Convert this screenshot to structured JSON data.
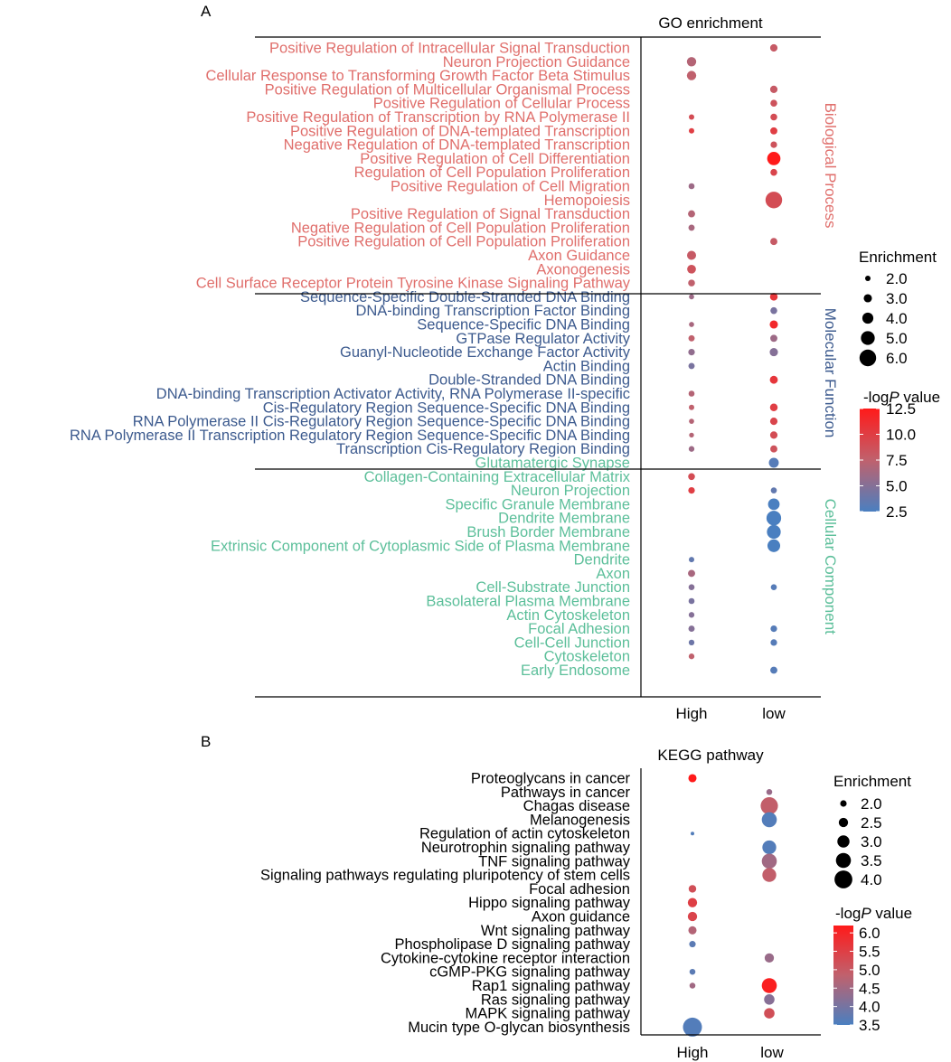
{
  "panel_a": {
    "label": "A",
    "title": "GO enrichment",
    "x_categories": [
      "High",
      "low"
    ],
    "groups": [
      {
        "name": "Biological Process",
        "color": "#e06f6c",
        "terms": [
          "Positive Regulation of Intracellular Signal Transduction",
          "Neuron Projection Guidance",
          "Cellular Response to Transforming Growth Factor Beta Stimulus",
          "Positive Regulation of Multicellular Organismal Process",
          "Positive Regulation of Cellular Process",
          "Positive Regulation of Transcription by RNA Polymerase II",
          "Positive Regulation of DNA-templated Transcription",
          "Negative Regulation of DNA-templated Transcription",
          "Positive Regulation of Cell Differentiation",
          "Regulation of Cell Population Proliferation",
          "Positive Regulation of Cell Migration",
          "Hemopoiesis",
          "Positive Regulation of Signal Transduction",
          "Negative Regulation of Cell Population Proliferation",
          "Positive Regulation of Cell Population Proliferation",
          "Axon Guidance",
          "Axonogenesis",
          "Cell Surface Receptor Protein Tyrosine Kinase Signaling Pathway"
        ]
      },
      {
        "name": "Molecular Function",
        "color": "#3c5a8e",
        "terms": [
          "Sequence-Specific Double-Stranded DNA Binding",
          "DNA-binding Transcription Factor Binding",
          "Sequence-Specific DNA Binding",
          "GTPase Regulator Activity",
          "Guanyl-Nucleotide Exchange Factor Activity",
          "Actin Binding",
          "Double-Stranded DNA Binding",
          "DNA-binding Transcription Activator Activity, RNA Polymerase II-specific",
          "Cis-Regulatory Region Sequence-Specific DNA Binding",
          "RNA Polymerase II Cis-Regulatory Region Sequence-Specific DNA Binding",
          "RNA Polymerase II Transcription Regulatory Region Sequence-Specific DNA Binding",
          "Transcription Cis-Regulatory Region Binding"
        ]
      },
      {
        "name": "Cellular Component",
        "color": "#5cbf9a",
        "terms": [
          "Glutamatergic Synapse",
          "Collagen-Containing Extracellular Matrix",
          "Neuron Projection",
          "Specific Granule Membrane",
          "Dendrite Membrane",
          "Brush Border Membrane",
          "Extrinsic Component of Cytoplasmic Side of Plasma Membrane",
          "Dendrite",
          "Axon",
          "Cell-Substrate Junction",
          "Basolateral Plasma Membrane",
          "Actin Cytoskeleton",
          "Focal Adhesion",
          "Cell-Cell Junction",
          "Cytoskeleton",
          "Early Endosome"
        ]
      }
    ],
    "legend": {
      "size_title": "Enrichment",
      "size_labels": [
        "2.0",
        "3.0",
        "4.0",
        "5.0",
        "6.0"
      ],
      "color_title_prefix": "-log",
      "color_title_italic": "P",
      "color_title_suffix": " value",
      "color_labels": [
        "12.5",
        "10.0",
        "7.5",
        "5.0",
        "2.5"
      ]
    }
  },
  "panel_b": {
    "label": "B",
    "title": "KEGG pathway",
    "x_categories": [
      "High",
      "low"
    ],
    "terms": [
      "Proteoglycans in cancer",
      "Pathways in cancer",
      "Chagas disease",
      "Melanogenesis",
      "Regulation of actin cytoskeleton",
      "Neurotrophin signaling pathway",
      "TNF signaling pathway",
      "Signaling pathways regulating pluripotency of stem cells",
      "Focal adhesion",
      "Hippo signaling pathway",
      "Axon guidance",
      "Wnt signaling pathway",
      "Phospholipase D signaling pathway",
      "Cytokine-cytokine receptor interaction",
      "cGMP-PKG signaling pathway",
      "Rap1 signaling pathway",
      "Ras signaling pathway",
      "MAPK signaling pathway",
      "Mucin type O-glycan biosynthesis"
    ],
    "legend": {
      "size_title": "Enrichment",
      "size_labels": [
        "2.0",
        "2.5",
        "3.0",
        "3.5",
        "4.0"
      ],
      "color_title_prefix": "-log",
      "color_title_italic": "P",
      "color_title_suffix": " value",
      "color_labels": [
        "6.0",
        "5.5",
        "5.0",
        "4.5",
        "4.0",
        "3.5"
      ]
    }
  },
  "colors": {
    "low": "#4a7fc0",
    "high": "#ff1a1a",
    "axis": "#000000"
  },
  "chart_data": [
    {
      "type": "scatter",
      "title": "GO enrichment",
      "xlabel": "",
      "ylabel": "",
      "categories": [
        "High",
        "low"
      ],
      "size_variable": "Enrichment",
      "color_variable": "-logP value",
      "size_range": [
        2.0,
        6.0
      ],
      "color_range": [
        2.5,
        12.5
      ],
      "points": [
        {
          "term": "Positive Regulation of Intracellular Signal Transduction",
          "x": "low",
          "enrichment": 2.7,
          "neglogp": 8.0
        },
        {
          "term": "Neuron Projection Guidance",
          "x": "High",
          "enrichment": 3.4,
          "neglogp": 7.0
        },
        {
          "term": "Cellular Response to Transforming Growth Factor Beta Stimulus",
          "x": "High",
          "enrichment": 3.4,
          "neglogp": 7.5
        },
        {
          "term": "Positive Regulation of Multicellular Organismal Process",
          "x": "low",
          "enrichment": 2.7,
          "neglogp": 8.0
        },
        {
          "term": "Positive Regulation of Cellular Process",
          "x": "low",
          "enrichment": 2.5,
          "neglogp": 8.5
        },
        {
          "term": "Positive Regulation of Transcription by RNA Polymerase II",
          "x": "High",
          "enrichment": 2.0,
          "neglogp": 9.0
        },
        {
          "term": "Positive Regulation of Transcription by RNA Polymerase II",
          "x": "low",
          "enrichment": 2.5,
          "neglogp": 9.0
        },
        {
          "term": "Positive Regulation of DNA-templated Transcription",
          "x": "High",
          "enrichment": 2.0,
          "neglogp": 10.0
        },
        {
          "term": "Positive Regulation of DNA-templated Transcription",
          "x": "low",
          "enrichment": 2.6,
          "neglogp": 10.0
        },
        {
          "term": "Negative Regulation of DNA-templated Transcription",
          "x": "low",
          "enrichment": 2.4,
          "neglogp": 8.5
        },
        {
          "term": "Positive Regulation of Cell Differentiation",
          "x": "low",
          "enrichment": 4.8,
          "neglogp": 12.5
        },
        {
          "term": "Regulation of Cell Population Proliferation",
          "x": "low",
          "enrichment": 2.5,
          "neglogp": 9.5
        },
        {
          "term": "Positive Regulation of Cell Migration",
          "x": "High",
          "enrichment": 2.2,
          "neglogp": 6.0
        },
        {
          "term": "Hemopoiesis",
          "x": "low",
          "enrichment": 6.0,
          "neglogp": 9.0
        },
        {
          "term": "Positive Regulation of Signal Transduction",
          "x": "High",
          "enrichment": 2.6,
          "neglogp": 7.0
        },
        {
          "term": "Negative Regulation of Cell Population Proliferation",
          "x": "High",
          "enrichment": 2.3,
          "neglogp": 6.5
        },
        {
          "term": "Positive Regulation of Cell Population Proliferation",
          "x": "low",
          "enrichment": 2.6,
          "neglogp": 8.0
        },
        {
          "term": "Axon Guidance",
          "x": "High",
          "enrichment": 3.3,
          "neglogp": 8.0
        },
        {
          "term": "Axonogenesis",
          "x": "High",
          "enrichment": 3.2,
          "neglogp": 8.5
        },
        {
          "term": "Cell Surface Receptor Protein Tyrosine Kinase Signaling Pathway",
          "x": "High",
          "enrichment": 2.5,
          "neglogp": 7.5
        },
        {
          "term": "Sequence-Specific Double-Stranded DNA Binding",
          "x": "High",
          "enrichment": 1.9,
          "neglogp": 6.0
        },
        {
          "term": "Sequence-Specific Double-Stranded DNA Binding",
          "x": "low",
          "enrichment": 2.8,
          "neglogp": 10.5
        },
        {
          "term": "DNA-binding Transcription Factor Binding",
          "x": "low",
          "enrichment": 2.5,
          "neglogp": 4.5
        },
        {
          "term": "Sequence-Specific DNA Binding",
          "x": "High",
          "enrichment": 1.9,
          "neglogp": 6.5
        },
        {
          "term": "Sequence-Specific DNA Binding",
          "x": "low",
          "enrichment": 3.0,
          "neglogp": 11.5
        },
        {
          "term": "GTPase Regulator Activity",
          "x": "High",
          "enrichment": 2.3,
          "neglogp": 7.5
        },
        {
          "term": "GTPase Regulator Activity",
          "x": "low",
          "enrichment": 2.6,
          "neglogp": 6.0
        },
        {
          "term": "Guanyl-Nucleotide Exchange Factor Activity",
          "x": "High",
          "enrichment": 2.4,
          "neglogp": 5.5
        },
        {
          "term": "Guanyl-Nucleotide Exchange Factor Activity",
          "x": "low",
          "enrichment": 3.0,
          "neglogp": 5.0
        },
        {
          "term": "Actin Binding",
          "x": "High",
          "enrichment": 2.3,
          "neglogp": 4.5
        },
        {
          "term": "Double-Stranded DNA Binding",
          "x": "low",
          "enrichment": 2.9,
          "neglogp": 10.5
        },
        {
          "term": "DNA-binding Transcription Activator Activity, RNA Polymerase II-specific",
          "x": "High",
          "enrichment": 2.2,
          "neglogp": 7.0
        },
        {
          "term": "Cis-Regulatory Region Sequence-Specific DNA Binding",
          "x": "High",
          "enrichment": 2.0,
          "neglogp": 7.5
        },
        {
          "term": "Cis-Regulatory Region Sequence-Specific DNA Binding",
          "x": "low",
          "enrichment": 2.8,
          "neglogp": 10.0
        },
        {
          "term": "RNA Polymerase II Cis-Regulatory Region Sequence-Specific DNA Binding",
          "x": "High",
          "enrichment": 1.9,
          "neglogp": 7.0
        },
        {
          "term": "RNA Polymerase II Cis-Regulatory Region Sequence-Specific DNA Binding",
          "x": "low",
          "enrichment": 2.7,
          "neglogp": 9.5
        },
        {
          "term": "RNA Polymerase II Transcription Regulatory Region Sequence-Specific DNA Binding",
          "x": "High",
          "enrichment": 1.8,
          "neglogp": 7.0
        },
        {
          "term": "RNA Polymerase II Transcription Regulatory Region Sequence-Specific DNA Binding",
          "x": "low",
          "enrichment": 2.7,
          "neglogp": 9.0
        },
        {
          "term": "Transcription Cis-Regulatory Region Binding",
          "x": "High",
          "enrichment": 2.1,
          "neglogp": 6.0
        },
        {
          "term": "Transcription Cis-Regulatory Region Binding",
          "x": "low",
          "enrichment": 2.6,
          "neglogp": 8.5
        },
        {
          "term": "Glutamatergic Synapse",
          "x": "low",
          "enrichment": 3.6,
          "neglogp": 3.0
        },
        {
          "term": "Collagen-Containing Extracellular Matrix",
          "x": "High",
          "enrichment": 2.5,
          "neglogp": 9.0
        },
        {
          "term": "Neuron Projection",
          "x": "High",
          "enrichment": 2.4,
          "neglogp": 10.0
        },
        {
          "term": "Neuron Projection",
          "x": "low",
          "enrichment": 2.2,
          "neglogp": 3.5
        },
        {
          "term": "Specific Granule Membrane",
          "x": "low",
          "enrichment": 4.2,
          "neglogp": 2.5
        },
        {
          "term": "Dendrite Membrane",
          "x": "low",
          "enrichment": 5.3,
          "neglogp": 2.5
        },
        {
          "term": "Brush Border Membrane",
          "x": "low",
          "enrichment": 5.0,
          "neglogp": 2.5
        },
        {
          "term": "Extrinsic Component of Cytoplasmic Side of Plasma Membrane",
          "x": "low",
          "enrichment": 4.6,
          "neglogp": 2.5
        },
        {
          "term": "Dendrite",
          "x": "High",
          "enrichment": 2.0,
          "neglogp": 3.5
        },
        {
          "term": "Axon",
          "x": "High",
          "enrichment": 2.6,
          "neglogp": 6.5
        },
        {
          "term": "Cell-Substrate Junction",
          "x": "High",
          "enrichment": 2.2,
          "neglogp": 5.0
        },
        {
          "term": "Cell-Substrate Junction",
          "x": "low",
          "enrichment": 2.2,
          "neglogp": 3.0
        },
        {
          "term": "Basolateral Plasma Membrane",
          "x": "High",
          "enrichment": 2.2,
          "neglogp": 4.5
        },
        {
          "term": "Actin Cytoskeleton",
          "x": "High",
          "enrichment": 2.1,
          "neglogp": 5.0
        },
        {
          "term": "Focal Adhesion",
          "x": "High",
          "enrichment": 2.3,
          "neglogp": 5.0
        },
        {
          "term": "Focal Adhesion",
          "x": "low",
          "enrichment": 2.4,
          "neglogp": 3.0
        },
        {
          "term": "Cell-Cell Junction",
          "x": "High",
          "enrichment": 2.1,
          "neglogp": 4.0
        },
        {
          "term": "Cell-Cell Junction",
          "x": "low",
          "enrichment": 2.4,
          "neglogp": 3.0
        },
        {
          "term": "Cytoskeleton",
          "x": "High",
          "enrichment": 2.1,
          "neglogp": 7.5
        },
        {
          "term": "Early Endosome",
          "x": "low",
          "enrichment": 2.6,
          "neglogp": 3.0
        }
      ]
    },
    {
      "type": "scatter",
      "title": "KEGG pathway",
      "xlabel": "",
      "ylabel": "",
      "categories": [
        "High",
        "low"
      ],
      "size_variable": "Enrichment",
      "color_variable": "-logP value",
      "size_range": [
        1.5,
        4.2
      ],
      "color_range": [
        3.5,
        6.2
      ],
      "points": [
        {
          "term": "Proteoglycans in cancer",
          "x": "High",
          "enrichment": 2.3,
          "neglogp": 6.2
        },
        {
          "term": "Pathways in cancer",
          "x": "low",
          "enrichment": 1.9,
          "neglogp": 4.4
        },
        {
          "term": "Chagas disease",
          "x": "low",
          "enrichment": 3.9,
          "neglogp": 4.9
        },
        {
          "term": "Melanogenesis",
          "x": "low",
          "enrichment": 3.5,
          "neglogp": 3.6
        },
        {
          "term": "Regulation of actin cytoskeleton",
          "x": "High",
          "enrichment": 1.5,
          "neglogp": 3.6
        },
        {
          "term": "Neurotrophin signaling pathway",
          "x": "low",
          "enrichment": 3.3,
          "neglogp": 3.6
        },
        {
          "term": "TNF signaling pathway",
          "x": "low",
          "enrichment": 3.5,
          "neglogp": 4.5
        },
        {
          "term": "Signaling pathways regulating pluripotency of stem cells",
          "x": "low",
          "enrichment": 3.3,
          "neglogp": 4.9
        },
        {
          "term": "Focal adhesion",
          "x": "High",
          "enrichment": 2.2,
          "neglogp": 5.2
        },
        {
          "term": "Hippo signaling pathway",
          "x": "High",
          "enrichment": 2.5,
          "neglogp": 5.5
        },
        {
          "term": "Axon guidance",
          "x": "High",
          "enrichment": 2.5,
          "neglogp": 5.4
        },
        {
          "term": "Wnt signaling pathway",
          "x": "High",
          "enrichment": 2.3,
          "neglogp": 4.7
        },
        {
          "term": "Phospholipase D signaling pathway",
          "x": "High",
          "enrichment": 2.0,
          "neglogp": 3.7
        },
        {
          "term": "Cytokine-cytokine receptor interaction",
          "x": "low",
          "enrichment": 2.5,
          "neglogp": 4.4
        },
        {
          "term": "cGMP-PKG signaling pathway",
          "x": "High",
          "enrichment": 1.9,
          "neglogp": 3.7
        },
        {
          "term": "Rap1 signaling pathway",
          "x": "High",
          "enrichment": 1.9,
          "neglogp": 4.5
        },
        {
          "term": "Rap1 signaling pathway",
          "x": "low",
          "enrichment": 3.5,
          "neglogp": 6.1
        },
        {
          "term": "Ras signaling pathway",
          "x": "low",
          "enrichment": 2.7,
          "neglogp": 4.2
        },
        {
          "term": "MAPK signaling pathway",
          "x": "low",
          "enrichment": 2.7,
          "neglogp": 5.2
        },
        {
          "term": "Mucin type O-glycan biosynthesis",
          "x": "High",
          "enrichment": 4.2,
          "neglogp": 3.6
        }
      ]
    }
  ]
}
